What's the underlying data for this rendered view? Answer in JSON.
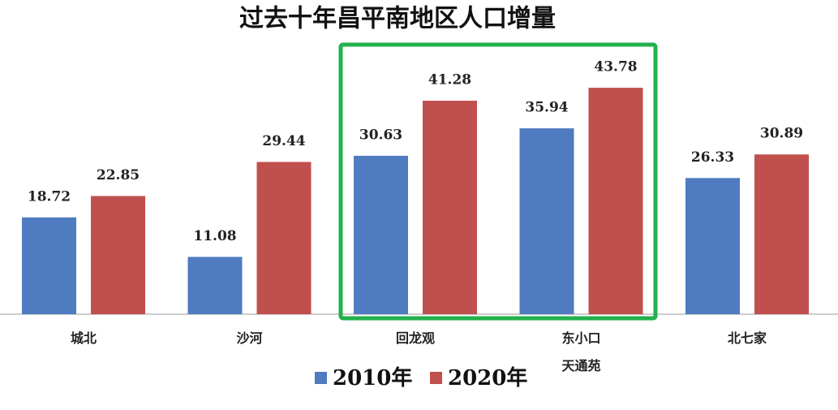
{
  "chart_data": {
    "type": "bar",
    "title": "过去十年昌平南地区人口增量",
    "categories": [
      "城北",
      "沙河",
      "回龙观",
      "东小口\n天通苑",
      "北七家"
    ],
    "series": [
      {
        "name": "2010年",
        "color": "#4f7bc0",
        "values": [
          18.72,
          11.08,
          30.63,
          35.94,
          26.33
        ]
      },
      {
        "name": "2020年",
        "color": "#c0504d",
        "values": [
          22.85,
          29.44,
          41.28,
          43.78,
          30.89
        ]
      }
    ]
  }
}
